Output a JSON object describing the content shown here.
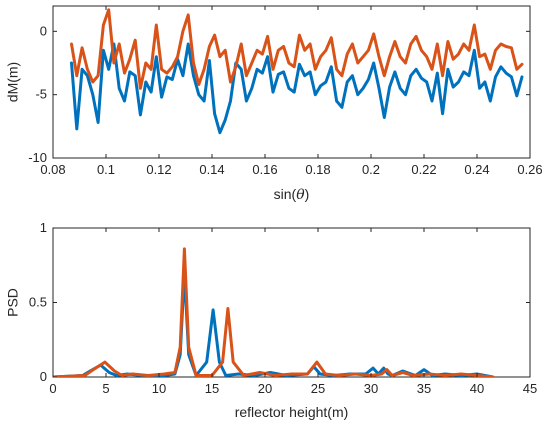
{
  "colors": {
    "series_blue": "#0072BD",
    "series_orange": "#D95319",
    "axis": "#262626"
  },
  "chart_data": [
    {
      "type": "line",
      "xlabel_text": "sin(",
      "xlabel_theta": "θ",
      "xlabel_close": ")",
      "ylabel": "dM(m)",
      "xlim": [
        0.08,
        0.26
      ],
      "ylim": [
        -10,
        2
      ],
      "xticks": [
        "0.08",
        "0.1",
        "0.12",
        "0.14",
        "0.16",
        "0.18",
        "0.2",
        "0.22",
        "0.24",
        "0.26"
      ],
      "xtick_values": [
        0.08,
        0.1,
        0.12,
        0.14,
        0.16,
        0.18,
        0.2,
        0.22,
        0.24,
        0.26
      ],
      "yticks": [
        "-10",
        "-5",
        "0"
      ],
      "ytick_values": [
        -10,
        -5,
        0
      ],
      "grid": false,
      "series": [
        {
          "color": "#0072BD",
          "x": [
            0.087,
            0.089,
            0.091,
            0.093,
            0.095,
            0.097,
            0.099,
            0.101,
            0.103,
            0.105,
            0.107,
            0.109,
            0.111,
            0.113,
            0.115,
            0.117,
            0.119,
            0.121,
            0.123,
            0.125,
            0.127,
            0.129,
            0.131,
            0.133,
            0.135,
            0.137,
            0.139,
            0.141,
            0.143,
            0.145,
            0.147,
            0.149,
            0.151,
            0.153,
            0.155,
            0.157,
            0.159,
            0.161,
            0.163,
            0.165,
            0.167,
            0.169,
            0.171,
            0.173,
            0.175,
            0.177,
            0.179,
            0.181,
            0.183,
            0.185,
            0.187,
            0.189,
            0.191,
            0.193,
            0.195,
            0.197,
            0.199,
            0.201,
            0.203,
            0.205,
            0.207,
            0.209,
            0.211,
            0.213,
            0.215,
            0.217,
            0.219,
            0.221,
            0.223,
            0.225,
            0.227,
            0.229,
            0.231,
            0.233,
            0.235,
            0.237,
            0.239,
            0.241,
            0.243,
            0.245,
            0.247,
            0.249,
            0.251,
            0.253,
            0.255,
            0.257
          ],
          "y": [
            -2.5,
            -7.7,
            -3.0,
            -3.5,
            -5.0,
            -7.2,
            -1.5,
            -3.0,
            -1.0,
            -4.5,
            -5.5,
            -3.2,
            -3.5,
            -6.6,
            -4.0,
            -4.8,
            -2.0,
            -5.2,
            -3.6,
            -3.8,
            -2.2,
            -3.5,
            -1.0,
            -3.5,
            -5.0,
            -5.5,
            -2.3,
            -6.5,
            -8.0,
            -7.0,
            -5.5,
            -2.5,
            -3.0,
            -5.5,
            -4.5,
            -3.0,
            -3.3,
            -2.0,
            -4.8,
            -3.4,
            -3.2,
            -4.5,
            -4.8,
            -2.6,
            -3.5,
            -3.2,
            -5.0,
            -4.3,
            -4.0,
            -2.8,
            -5.5,
            -6.0,
            -4.0,
            -3.5,
            -5.0,
            -4.5,
            -3.8,
            -2.5,
            -4.5,
            -6.8,
            -4.4,
            -3.2,
            -4.5,
            -5.0,
            -3.5,
            -3.0,
            -3.7,
            -4.0,
            -5.5,
            -3.3,
            -6.5,
            -3.0,
            -4.4,
            -4.0,
            -3.2,
            -3.5,
            -1.5,
            -4.5,
            -4.0,
            -5.5,
            -3.6,
            -2.8,
            -3.3,
            -3.6,
            -5.1,
            -3.6
          ]
        },
        {
          "color": "#D95319",
          "x": [
            0.087,
            0.089,
            0.091,
            0.093,
            0.095,
            0.097,
            0.099,
            0.101,
            0.103,
            0.105,
            0.107,
            0.109,
            0.111,
            0.113,
            0.115,
            0.117,
            0.119,
            0.121,
            0.123,
            0.125,
            0.127,
            0.129,
            0.131,
            0.133,
            0.135,
            0.137,
            0.139,
            0.141,
            0.143,
            0.145,
            0.147,
            0.149,
            0.151,
            0.153,
            0.155,
            0.157,
            0.159,
            0.161,
            0.163,
            0.165,
            0.167,
            0.169,
            0.171,
            0.173,
            0.175,
            0.177,
            0.179,
            0.181,
            0.183,
            0.185,
            0.187,
            0.189,
            0.191,
            0.193,
            0.195,
            0.197,
            0.199,
            0.201,
            0.203,
            0.205,
            0.207,
            0.209,
            0.211,
            0.213,
            0.215,
            0.217,
            0.219,
            0.221,
            0.223,
            0.225,
            0.227,
            0.229,
            0.231,
            0.233,
            0.235,
            0.237,
            0.239,
            0.241,
            0.243,
            0.245,
            0.247,
            0.249,
            0.251,
            0.253,
            0.255,
            0.257
          ],
          "y": [
            -1.0,
            -3.5,
            -1.3,
            -3.0,
            -4.0,
            -3.5,
            0.5,
            1.7,
            -2.5,
            -1.0,
            -3.3,
            -2.2,
            -0.7,
            -4.5,
            -2.5,
            -3.0,
            0.5,
            -3.0,
            -3.3,
            -2.8,
            -2.0,
            0.0,
            1.3,
            -2.5,
            -4.2,
            -3.0,
            -1.2,
            -0.3,
            -2.0,
            -1.5,
            -4.0,
            -2.8,
            -1.0,
            -3.5,
            -2.5,
            -1.5,
            -1.8,
            -0.4,
            -3.0,
            -1.5,
            -1.2,
            -2.5,
            -2.8,
            -0.3,
            -1.5,
            -1.0,
            -3.0,
            -2.0,
            -1.5,
            -0.5,
            -3.0,
            -3.5,
            -1.8,
            -1.0,
            -2.5,
            -2.0,
            -1.5,
            -0.2,
            -2.0,
            -3.5,
            -2.0,
            -0.8,
            -2.0,
            -2.5,
            -1.0,
            -0.4,
            -1.5,
            -2.0,
            -3.0,
            -1.0,
            -3.5,
            -0.8,
            -2.2,
            -1.8,
            -1.0,
            -1.5,
            0.5,
            -2.0,
            -1.8,
            -3.0,
            -1.5,
            -1.0,
            -1.2,
            -1.3,
            -3.0,
            -2.6
          ]
        }
      ]
    },
    {
      "type": "line",
      "xlabel": "reflector height(m)",
      "ylabel": "PSD",
      "xlim": [
        0,
        45
      ],
      "ylim": [
        0,
        1
      ],
      "xticks": [
        "0",
        "5",
        "10",
        "15",
        "20",
        "25",
        "30",
        "35",
        "40",
        "45"
      ],
      "xtick_values": [
        0,
        5,
        10,
        15,
        20,
        25,
        30,
        35,
        40,
        45
      ],
      "yticks": [
        "0",
        "0.5",
        "1"
      ],
      "ytick_values": [
        0,
        0.5,
        1
      ],
      "grid": false,
      "series": [
        {
          "color": "#0072BD",
          "x": [
            0,
            2.8,
            3.5,
            4.5,
            5.3,
            6.0,
            7.0,
            8.5,
            10.5,
            11.5,
            12.0,
            12.4,
            12.8,
            13.5,
            14.5,
            15.1,
            15.7,
            16.3,
            17.5,
            19.0,
            20.5,
            22.0,
            24.0,
            24.6,
            25.2,
            26.5,
            28.0,
            29.5,
            30.2,
            30.7,
            31.2,
            31.6,
            32.0,
            33.0,
            34.2,
            35.0,
            35.8,
            37.0,
            38.5,
            40.0,
            41.5
          ],
          "y": [
            0.0,
            0.01,
            0.04,
            0.08,
            0.03,
            0.01,
            0.02,
            0.01,
            0.01,
            0.02,
            0.15,
            0.7,
            0.15,
            0.01,
            0.1,
            0.45,
            0.1,
            0.01,
            0.02,
            0.01,
            0.03,
            0.01,
            0.02,
            0.07,
            0.02,
            0.01,
            0.02,
            0.02,
            0.06,
            0.02,
            0.06,
            0.02,
            0.01,
            0.04,
            0.01,
            0.05,
            0.01,
            0.02,
            0.01,
            0.02,
            0.0
          ]
        },
        {
          "color": "#D95319",
          "x": [
            0,
            3.0,
            3.8,
            4.9,
            5.8,
            6.5,
            7.5,
            9.0,
            10.5,
            11.5,
            12.0,
            12.4,
            12.8,
            13.5,
            15.0,
            16.0,
            16.5,
            17.0,
            18.0,
            19.5,
            21.0,
            22.5,
            24.0,
            24.9,
            25.7,
            27.0,
            28.5,
            30.0,
            31.0,
            31.5,
            32.0,
            33.0,
            34.0,
            35.5,
            37.0,
            38.5,
            40.0,
            41.5
          ],
          "y": [
            0.0,
            0.01,
            0.05,
            0.1,
            0.04,
            0.01,
            0.02,
            0.01,
            0.02,
            0.03,
            0.2,
            0.86,
            0.2,
            0.01,
            0.01,
            0.1,
            0.46,
            0.1,
            0.01,
            0.03,
            0.01,
            0.02,
            0.02,
            0.1,
            0.02,
            0.01,
            0.02,
            0.01,
            0.02,
            0.05,
            0.01,
            0.03,
            0.01,
            0.02,
            0.01,
            0.02,
            0.01,
            0.0
          ]
        }
      ]
    }
  ]
}
